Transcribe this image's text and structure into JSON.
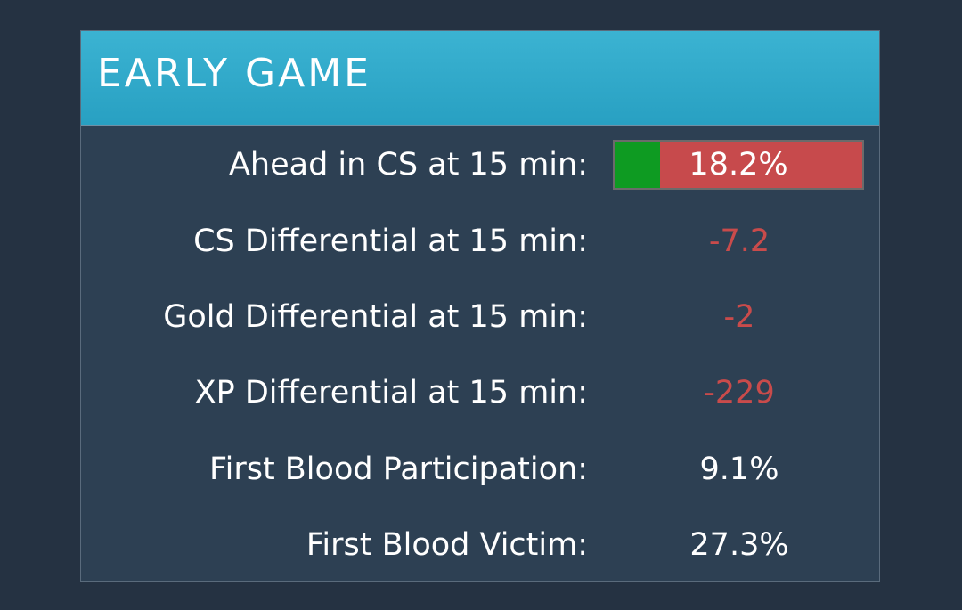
{
  "panel": {
    "title": "EARLY GAME"
  },
  "colors": {
    "header": "#2ba6c7",
    "panel_bg": "#2d4053",
    "negative": "#c94b4b",
    "bar_fill": "#0e9b22",
    "bar_track": "#c74a4c"
  },
  "stats": [
    {
      "label": "Ahead in CS at 15 min:",
      "value": "18.2%",
      "bar_fraction": 0.182
    },
    {
      "label": "CS Differential at 15 min:",
      "value": "-7.2"
    },
    {
      "label": "Gold Differential at 15 min:",
      "value": "-2"
    },
    {
      "label": "XP Differential at 15 min:",
      "value": "-229"
    },
    {
      "label": "First Blood Participation:",
      "value": "9.1%"
    },
    {
      "label": "First Blood Victim:",
      "value": "27.3%"
    }
  ]
}
